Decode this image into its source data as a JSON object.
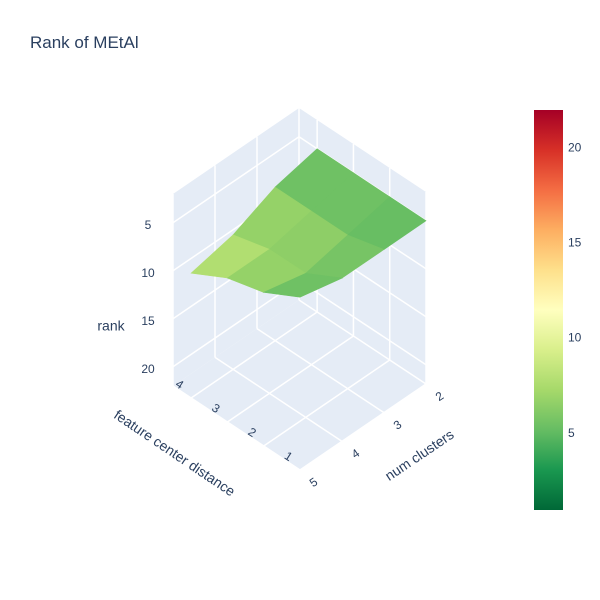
{
  "chart_data": {
    "type": "surface",
    "title": "Rank of MEtAl",
    "axes": {
      "x": {
        "title": "feature center distance",
        "ticks": [
          "1",
          "2",
          "3",
          "4"
        ],
        "range": [
          1,
          4.5
        ]
      },
      "y": {
        "title": "num clusters",
        "ticks": [
          "2",
          "3",
          "4",
          "5"
        ],
        "range": [
          2,
          5
        ]
      },
      "z": {
        "title": "rank",
        "ticks": [
          "5",
          "10",
          "15",
          "20"
        ],
        "range": [
          2,
          22
        ],
        "reversed": true
      }
    },
    "x": [
      1,
      2,
      3,
      4
    ],
    "y": [
      2,
      3,
      4,
      5
    ],
    "z": [
      [
        5,
        5,
        5,
        5
      ],
      [
        5,
        6,
        6,
        6
      ],
      [
        5,
        7,
        7,
        8
      ],
      [
        4,
        6,
        7,
        9
      ]
    ],
    "colorbar": {
      "colorscale": "RdYlGn (reversed)",
      "range": [
        1,
        22
      ],
      "ticks": [
        "5",
        "10",
        "15",
        "20"
      ],
      "colors": [
        "#006837",
        "#1a9850",
        "#66bd63",
        "#a6d96a",
        "#d9ef8b",
        "#ffffbf",
        "#fee08b",
        "#fdae61",
        "#f46d43",
        "#d73027",
        "#a50026"
      ]
    },
    "grid": true
  }
}
